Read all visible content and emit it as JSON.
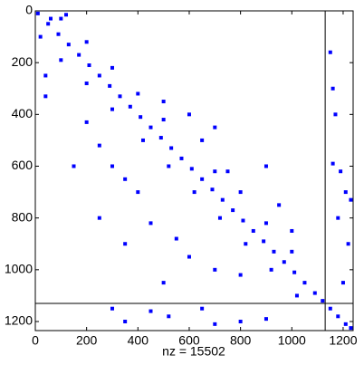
{
  "chart_data": {
    "type": "scatter",
    "xlabel": "nz = 15502",
    "x": [
      10,
      90,
      170,
      250,
      330,
      410,
      490,
      570,
      650,
      730,
      810,
      890,
      970,
      1050,
      1120,
      50,
      130,
      210,
      290,
      370,
      450,
      530,
      610,
      690,
      770,
      850,
      930,
      1010,
      1090,
      20,
      100,
      200,
      300,
      420,
      520,
      620,
      720,
      820,
      920,
      1020,
      100,
      200,
      300,
      400,
      500,
      700,
      900,
      1000,
      40,
      40,
      200,
      250,
      300,
      350,
      400,
      450,
      550,
      600,
      700,
      250,
      150,
      500,
      800,
      350,
      500,
      600,
      650,
      750,
      800,
      900,
      950,
      1000,
      700,
      120,
      60,
      1150,
      1170,
      1160,
      1190,
      1210,
      1230,
      1180,
      1220,
      1200,
      1160,
      300,
      450,
      520,
      700,
      800,
      900,
      650,
      350,
      1150,
      1180,
      1210,
      1230
    ],
    "y": [
      10,
      90,
      170,
      250,
      330,
      410,
      490,
      570,
      650,
      730,
      810,
      890,
      970,
      1050,
      1120,
      50,
      130,
      210,
      290,
      370,
      450,
      530,
      610,
      690,
      770,
      850,
      930,
      1010,
      1090,
      100,
      190,
      280,
      380,
      500,
      600,
      700,
      800,
      900,
      1000,
      1100,
      30,
      120,
      220,
      320,
      420,
      620,
      820,
      930,
      250,
      330,
      430,
      520,
      600,
      650,
      700,
      820,
      880,
      950,
      1000,
      800,
      600,
      1050,
      1020,
      900,
      350,
      400,
      500,
      620,
      700,
      600,
      750,
      850,
      450,
      15,
      30,
      160,
      400,
      590,
      620,
      700,
      730,
      800,
      900,
      1050,
      300,
      1150,
      1160,
      1180,
      1210,
      1200,
      1190,
      1150,
      1200,
      1150,
      1180,
      1210,
      1225
    ],
    "color": "#0000ff",
    "xlim": [
      0,
      1239
    ],
    "ylim": [
      0,
      1235
    ],
    "y_reversed": true,
    "xticks": [
      0,
      200,
      400,
      600,
      800,
      1000,
      1200
    ],
    "yticks": [
      0,
      200,
      400,
      600,
      800,
      1000,
      1200
    ],
    "partitions": [
      1130
    ]
  }
}
